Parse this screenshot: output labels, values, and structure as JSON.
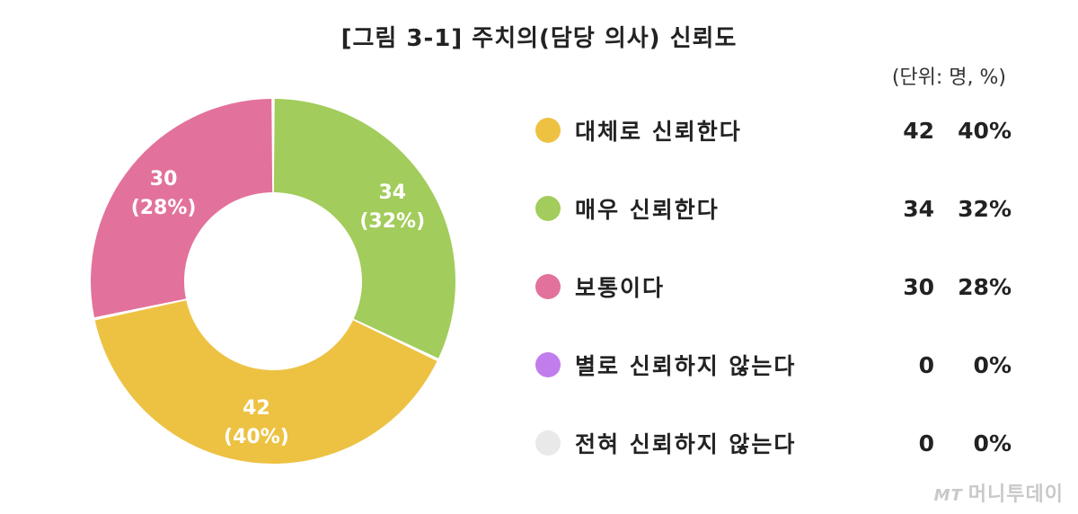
{
  "title": "[그림 3-1] 주치의(담당 의사) 신뢰도",
  "unit_label": "(단위: 명, %)",
  "watermark": {
    "mark": "MT",
    "text": "머니투데이"
  },
  "colors": {
    "대체로 신뢰한다": "#EDC243",
    "매우 신뢰한다": "#A2CC5B",
    "보통이다": "#E2729B",
    "별로 신뢰하지 않는다": "#C17DEB",
    "전혀 신뢰하지 않는다": "#E9E9E9"
  },
  "chart_data": {
    "type": "pie",
    "title": "[그림 3-1] 주치의(담당 의사) 신뢰도",
    "unit": "(단위: 명, %)",
    "donut": true,
    "legend_position": "right",
    "categories": [
      "대체로 신뢰한다",
      "매우 신뢰한다",
      "보통이다",
      "별로 신뢰하지 않는다",
      "전혀 신뢰하지 않는다"
    ],
    "values": [
      42,
      34,
      30,
      0,
      0
    ],
    "percent_labels": [
      "40%",
      "32%",
      "28%",
      "0%",
      "0%"
    ],
    "slice_labels": [
      {
        "value": "42",
        "percent": "(40%)"
      },
      {
        "value": "34",
        "percent": "(32%)"
      },
      {
        "value": "30",
        "percent": "(28%)"
      }
    ]
  }
}
